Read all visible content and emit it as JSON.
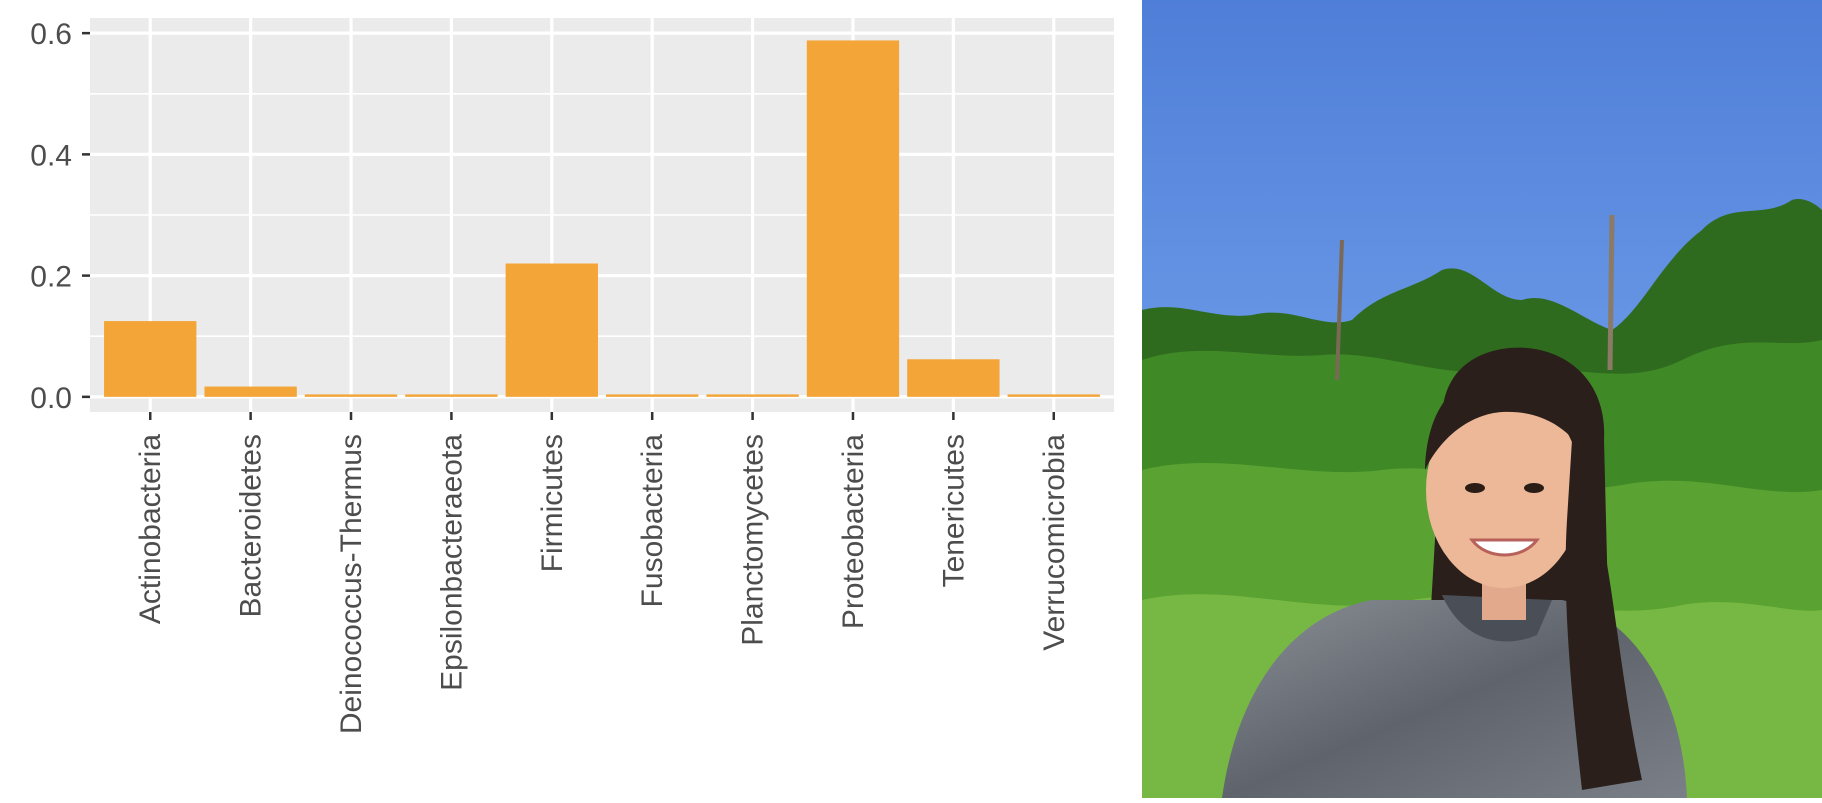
{
  "chart_data": {
    "type": "bar",
    "title": "",
    "xlabel": "",
    "ylabel": "",
    "categories": [
      "Actinobacteria",
      "Bacteroidetes",
      "Deinococcus-Thermus",
      "Epsilonbacteraeota",
      "Firmicutes",
      "Fusobacteria",
      "Planctomycetes",
      "Proteobacteria",
      "Tenericutes",
      "Verrucomicrobia"
    ],
    "values": [
      0.125,
      0.017,
      0.004,
      0.004,
      0.22,
      0.004,
      0.004,
      0.588,
      0.062,
      0.004
    ],
    "ylim": [
      -0.025,
      0.625
    ],
    "yticks": [
      0.0,
      0.2,
      0.4,
      0.6
    ],
    "ytick_labels": [
      "0.0",
      "0.2",
      "0.4",
      "0.6"
    ],
    "grid": true,
    "legend": "none",
    "bar_color": "#f4a537",
    "panel_background": "#ebebeb"
  },
  "photo": {
    "subject": "smiling woman in a grey hoodie",
    "background": "green trees under a blue sky"
  }
}
